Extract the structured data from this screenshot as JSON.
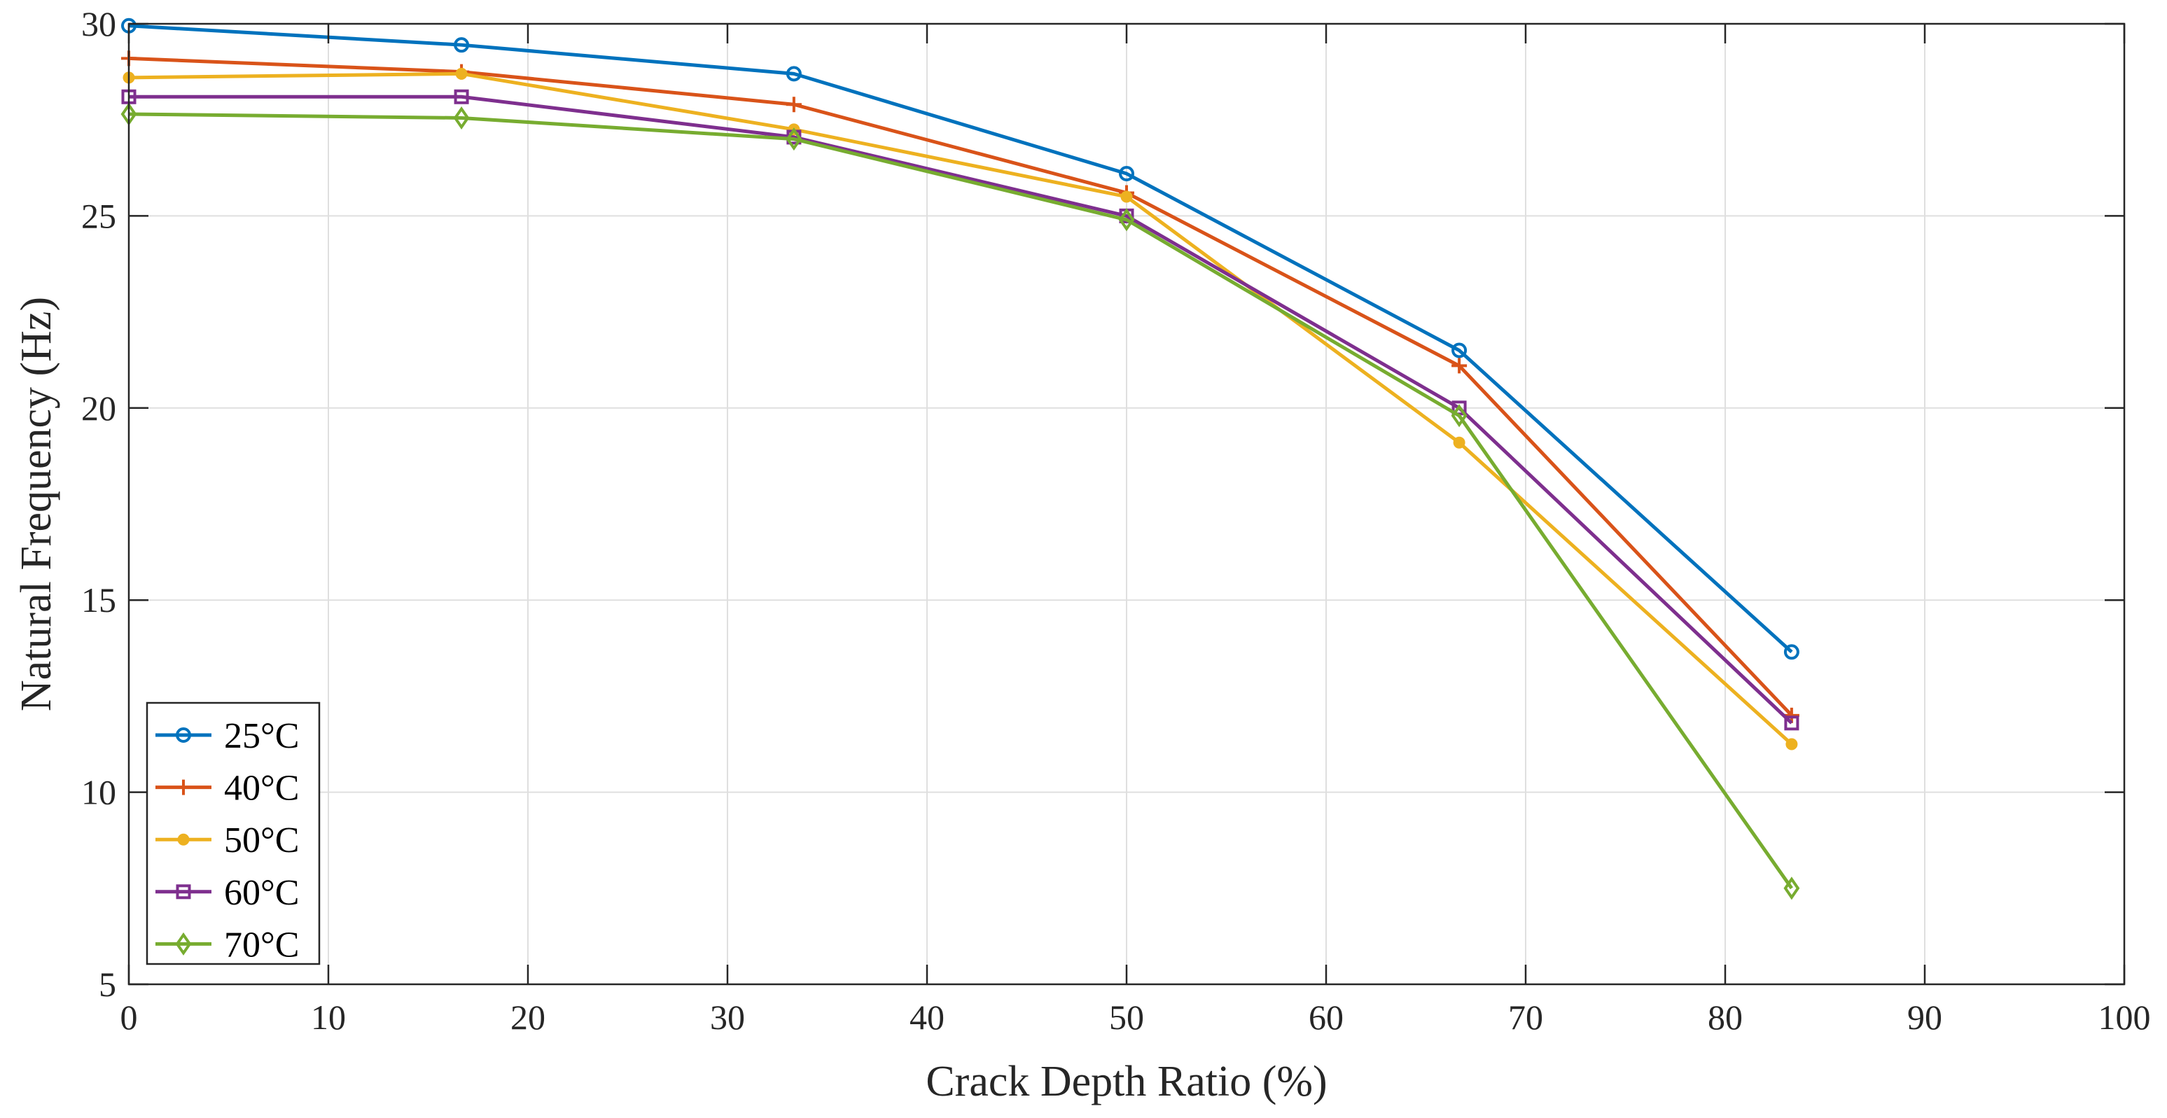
{
  "chart_data": {
    "type": "line",
    "title": "",
    "xlabel": "Crack Depth Ratio (%)",
    "ylabel": "Natural Frequency (Hz)",
    "xlim": [
      0,
      100
    ],
    "ylim": [
      5,
      30
    ],
    "xticks": [
      0,
      10,
      20,
      30,
      40,
      50,
      60,
      70,
      80,
      90,
      100
    ],
    "yticks": [
      5,
      10,
      15,
      20,
      25,
      30
    ],
    "grid": true,
    "legend_position": "bottom-left",
    "x": [
      0,
      16.67,
      33.33,
      50,
      66.67,
      83.33
    ],
    "series": [
      {
        "name": "25°C",
        "color": "#0072BD",
        "marker": "circle",
        "values": [
          29.95,
          29.45,
          28.7,
          26.1,
          21.5,
          13.65
        ]
      },
      {
        "name": "40°C",
        "color": "#D95319",
        "marker": "plus",
        "values": [
          29.1,
          28.75,
          27.9,
          25.6,
          21.1,
          12.0
        ]
      },
      {
        "name": "50°C",
        "color": "#EDB120",
        "marker": "dot",
        "values": [
          28.6,
          28.7,
          27.25,
          25.5,
          19.1,
          11.25
        ]
      },
      {
        "name": "60°C",
        "color": "#7E2F8E",
        "marker": "square",
        "values": [
          28.1,
          28.1,
          27.05,
          25.0,
          20.0,
          11.8
        ]
      },
      {
        "name": "70°C",
        "color": "#77AC30",
        "marker": "diamond",
        "values": [
          27.65,
          27.55,
          27.0,
          24.9,
          19.8,
          7.5
        ]
      }
    ]
  }
}
